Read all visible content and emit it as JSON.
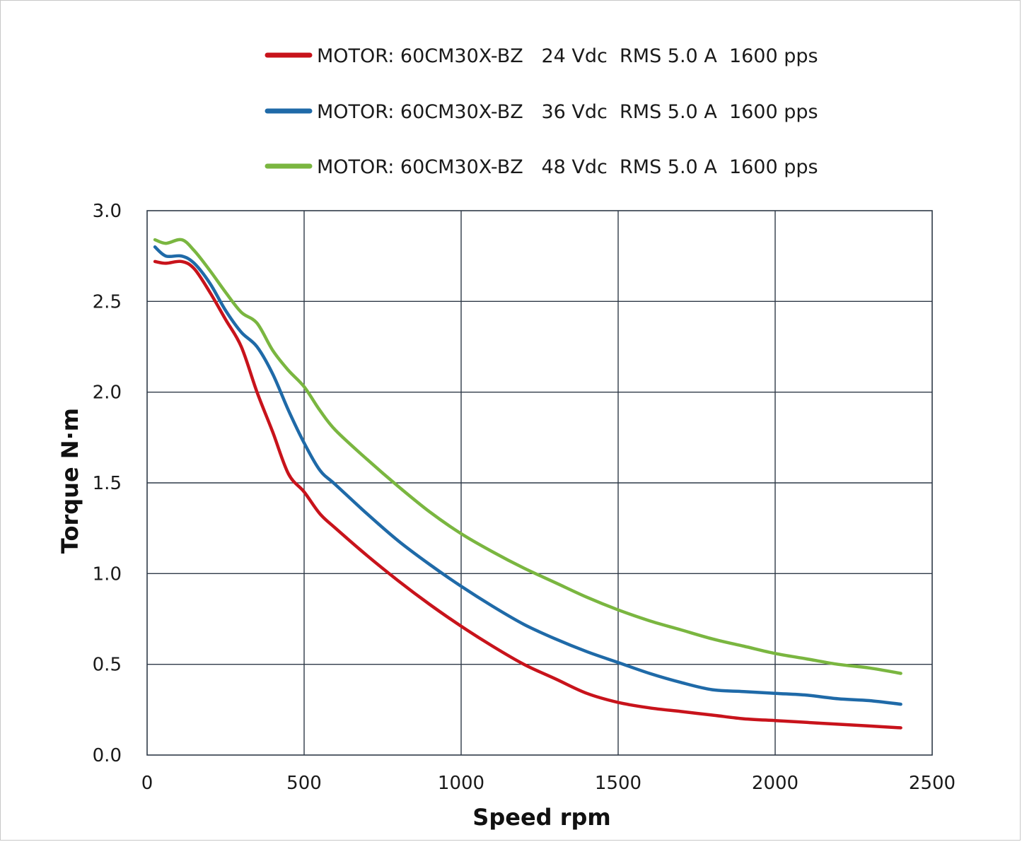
{
  "chart_data": {
    "type": "line",
    "title": "",
    "xlabel": "Speed rpm",
    "ylabel": "Torque N·m",
    "xlim": [
      0,
      2500
    ],
    "ylim": [
      0,
      3.0
    ],
    "x_ticks": [
      "0",
      "500",
      "1000",
      "1500",
      "2000",
      "2500"
    ],
    "y_ticks": [
      "0.0",
      "0.5",
      "1.0",
      "1.5",
      "2.0",
      "2.5",
      "3.0"
    ],
    "grid": true,
    "legend_position": "top",
    "series": [
      {
        "name": "MOTOR: 60CM30X-BZ   24 Vdc  RMS 5.0 A  1600 pps",
        "color": "#c8131b",
        "x": [
          25,
          60,
          110,
          150,
          200,
          250,
          300,
          350,
          400,
          450,
          500,
          550,
          600,
          700,
          800,
          900,
          1000,
          1100,
          1200,
          1300,
          1400,
          1500,
          1600,
          1700,
          1800,
          1900,
          2000,
          2100,
          2200,
          2300,
          2400
        ],
        "y": [
          2.72,
          2.71,
          2.72,
          2.68,
          2.55,
          2.4,
          2.25,
          2.0,
          1.78,
          1.55,
          1.45,
          1.33,
          1.25,
          1.1,
          0.96,
          0.83,
          0.71,
          0.6,
          0.5,
          0.42,
          0.34,
          0.29,
          0.26,
          0.24,
          0.22,
          0.2,
          0.19,
          0.18,
          0.17,
          0.16,
          0.15
        ]
      },
      {
        "name": "MOTOR: 60CM30X-BZ   36 Vdc  RMS 5.0 A  1600 pps",
        "color": "#1f6aa8",
        "x": [
          25,
          60,
          110,
          150,
          200,
          250,
          300,
          350,
          400,
          450,
          500,
          550,
          600,
          700,
          800,
          900,
          1000,
          1100,
          1200,
          1300,
          1400,
          1500,
          1600,
          1700,
          1800,
          1900,
          2000,
          2100,
          2200,
          2300,
          2400
        ],
        "y": [
          2.8,
          2.75,
          2.75,
          2.71,
          2.6,
          2.45,
          2.33,
          2.25,
          2.1,
          1.9,
          1.72,
          1.57,
          1.49,
          1.33,
          1.18,
          1.05,
          0.93,
          0.82,
          0.72,
          0.64,
          0.57,
          0.51,
          0.45,
          0.4,
          0.36,
          0.35,
          0.34,
          0.33,
          0.31,
          0.3,
          0.28
        ]
      },
      {
        "name": "MOTOR: 60CM30X-BZ   48 Vdc  RMS 5.0 A  1600 pps",
        "color": "#7ab640",
        "x": [
          25,
          60,
          110,
          150,
          200,
          250,
          300,
          350,
          400,
          450,
          500,
          550,
          600,
          700,
          800,
          900,
          1000,
          1100,
          1200,
          1300,
          1400,
          1500,
          1600,
          1700,
          1800,
          1900,
          2000,
          2100,
          2200,
          2300,
          2400
        ],
        "y": [
          2.84,
          2.82,
          2.84,
          2.78,
          2.67,
          2.55,
          2.44,
          2.38,
          2.23,
          2.12,
          2.03,
          1.9,
          1.79,
          1.63,
          1.48,
          1.34,
          1.22,
          1.12,
          1.03,
          0.95,
          0.87,
          0.8,
          0.74,
          0.69,
          0.64,
          0.6,
          0.56,
          0.53,
          0.5,
          0.48,
          0.45
        ]
      }
    ]
  }
}
